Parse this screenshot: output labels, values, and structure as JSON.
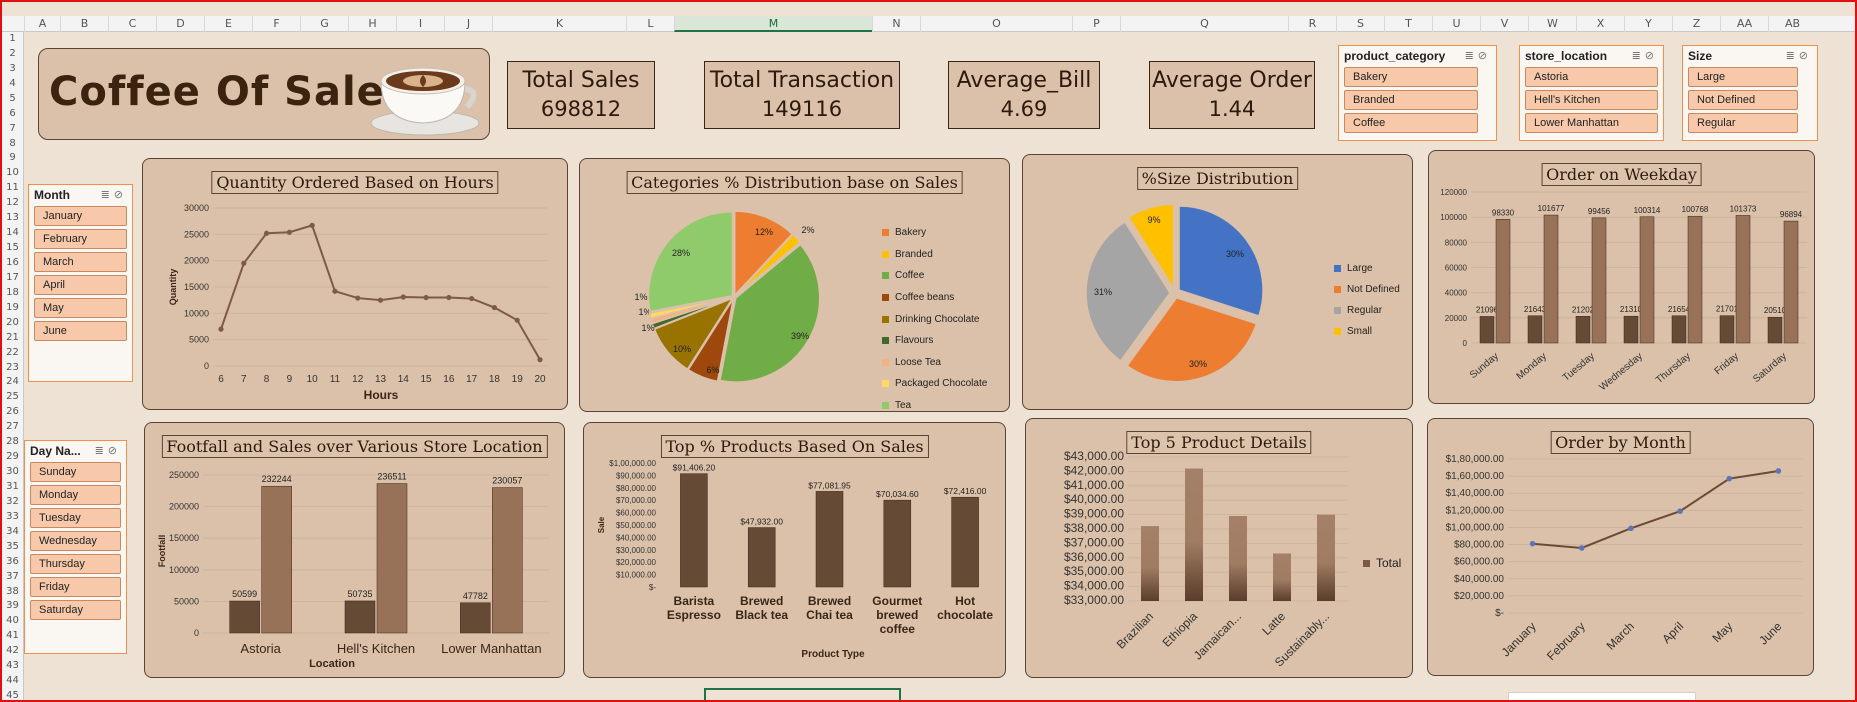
{
  "sheet": {
    "columns": [
      "A",
      "B",
      "C",
      "D",
      "E",
      "F",
      "G",
      "H",
      "I",
      "J",
      "K",
      "L",
      "M",
      "N",
      "O",
      "P",
      "Q",
      "R",
      "S",
      "T",
      "U",
      "V",
      "W",
      "X",
      "Y",
      "Z",
      "AA",
      "AB"
    ],
    "selected_column": "M",
    "rows": [
      "1",
      "2",
      "3",
      "4",
      "5",
      "6",
      "7",
      "8",
      "9",
      "10",
      "11",
      "12",
      "13",
      "14",
      "15",
      "16",
      "17",
      "18",
      "19",
      "20",
      "21",
      "22",
      "23",
      "24",
      "25",
      "26",
      "27",
      "28",
      "29",
      "30",
      "31",
      "32",
      "33",
      "34",
      "35",
      "36",
      "37",
      "38",
      "39",
      "40",
      "41",
      "42",
      "43",
      "44",
      "45"
    ]
  },
  "dashboard": {
    "title": "Coffee Of Sales"
  },
  "kpis": [
    {
      "label": "Total Sales",
      "value": "698812"
    },
    {
      "label": "Total Transaction",
      "value": "149116"
    },
    {
      "label": "Average_Bill",
      "value": "4.69"
    },
    {
      "label": "Average Order",
      "value": "1.44"
    }
  ],
  "slicers": {
    "product_category": {
      "title": "product_category",
      "items": [
        "Bakery",
        "Branded",
        "Coffee"
      ]
    },
    "store_location": {
      "title": "store_location",
      "items": [
        "Astoria",
        "Hell's Kitchen",
        "Lower Manhattan"
      ]
    },
    "size": {
      "title": "Size",
      "items": [
        "Large",
        "Not Defined",
        "Regular"
      ]
    },
    "month": {
      "title": "Month",
      "items": [
        "January",
        "February",
        "March",
        "April",
        "May",
        "June"
      ]
    },
    "day_name": {
      "title": "Day Na...",
      "items": [
        "Sunday",
        "Monday",
        "Tuesday",
        "Wednesday",
        "Thursday",
        "Friday",
        "Saturday"
      ]
    }
  },
  "colors": {
    "dark": "#654a36",
    "light": "#977258",
    "accent": "#f28f4a",
    "line": "#7d5b47"
  },
  "chart_data": [
    {
      "id": "hours",
      "type": "line",
      "title": "Quantity Ordered Based on Hours",
      "xlabel": "Hours",
      "ylabel": "Quantity",
      "ylim": [
        0,
        30000
      ],
      "yticks": [
        "0",
        "5000",
        "10000",
        "15000",
        "20000",
        "25000",
        "30000"
      ],
      "x": [
        "6",
        "7",
        "8",
        "9",
        "10",
        "11",
        "12",
        "13",
        "14",
        "15",
        "16",
        "17",
        "18",
        "19",
        "20"
      ],
      "values": [
        7000,
        19500,
        25200,
        25400,
        26700,
        14200,
        12900,
        12500,
        13100,
        13000,
        13000,
        12800,
        11100,
        8700,
        1200
      ]
    },
    {
      "id": "categories",
      "type": "pie",
      "title": "Categories % Distribution base on Sales",
      "labels": [
        "Bakery",
        "Branded",
        "Coffee",
        "Coffee beans",
        "Drinking Chocolate",
        "Flavours",
        "Loose Tea",
        "Packaged Chocolate",
        "Tea"
      ],
      "values": [
        12,
        2,
        39,
        6,
        10,
        1,
        1,
        1,
        28
      ],
      "value_labels": [
        "12%",
        "2%",
        "39%",
        "6%",
        "10%",
        "1%",
        "1%",
        "1%",
        "28%"
      ],
      "colors": [
        "#ed7d31",
        "#ffc000",
        "#70ad47",
        "#9e480e",
        "#997300",
        "#43682b",
        "#f4b183",
        "#ffd966",
        "#8fcb6a"
      ]
    },
    {
      "id": "size",
      "type": "pie",
      "title": "%Size Distribution",
      "labels": [
        "Large",
        "Not Defined",
        "Regular",
        "Small"
      ],
      "values": [
        30,
        30,
        31,
        9
      ],
      "value_labels": [
        "30%",
        "30%",
        "31%",
        "9%"
      ],
      "colors": [
        "#4472c4",
        "#ed7d31",
        "#a5a5a5",
        "#ffc000"
      ]
    },
    {
      "id": "weekday",
      "type": "bar",
      "title": "Order on Weekday",
      "categories": [
        "Sunday",
        "Monday",
        "Tuesday",
        "Wednesday",
        "Thursday",
        "Friday",
        "Saturday"
      ],
      "series": [
        {
          "values": [
            21096,
            21643,
            21202,
            21310,
            21654,
            21701,
            20510
          ]
        },
        {
          "values": [
            98330,
            101677,
            99456,
            100314,
            100768,
            101373,
            96894
          ]
        }
      ],
      "ylim": [
        0,
        120000
      ],
      "yticks": [
        "0",
        "20000",
        "40000",
        "60000",
        "80000",
        "100000",
        "120000"
      ]
    },
    {
      "id": "footfall",
      "type": "bar",
      "title": "Footfall and Sales over Various Store Location",
      "xlabel": "Location",
      "ylabel": "Footfall",
      "categories": [
        "Astoria",
        "Hell's Kitchen",
        "Lower Manhattan"
      ],
      "series": [
        {
          "values": [
            50599,
            50735,
            47782
          ]
        },
        {
          "values": [
            232244,
            236511,
            230057
          ]
        }
      ],
      "ylim": [
        0,
        250000
      ],
      "yticks": [
        "0",
        "50000",
        "100000",
        "150000",
        "200000",
        "250000"
      ]
    },
    {
      "id": "products",
      "type": "bar",
      "title": "Top % Products  Based  On Sales",
      "xlabel": "Product Type",
      "ylabel": "Sale",
      "categories": [
        [
          "Barista",
          "Espresso"
        ],
        [
          "Brewed",
          "Black tea"
        ],
        [
          "Brewed",
          "Chai tea"
        ],
        [
          "Gourmet",
          "brewed",
          "coffee"
        ],
        [
          "Hot",
          "chocolate"
        ]
      ],
      "values": [
        91406.2,
        47932.0,
        77081.95,
        70034.6,
        72416.0
      ],
      "value_labels": [
        "$91,406.20",
        "$47,932.00",
        "$77,081.95",
        "$70,034.60",
        "$72,416.00"
      ],
      "ylim": [
        0,
        100000
      ],
      "yticks": [
        "$-",
        "$10,000.00",
        "$20,000.00",
        "$30,000.00",
        "$40,000.00",
        "$50,000.00",
        "$60,000.00",
        "$70,000.00",
        "$80,000.00",
        "$90,000.00",
        "$1,00,000.00"
      ]
    },
    {
      "id": "top5",
      "type": "bar",
      "title": "Top 5 Product Details",
      "categories": [
        "Brazilian",
        "Ethiopia",
        "Jamaican...",
        "Latte",
        "Sustainably..."
      ],
      "values": [
        38200,
        42200,
        38900,
        36300,
        39000
      ],
      "ylim": [
        33000,
        43000
      ],
      "yticks": [
        "$33,000.00",
        "$34,000.00",
        "$35,000.00",
        "$36,000.00",
        "$37,000.00",
        "$38,000.00",
        "$39,000.00",
        "$40,000.00",
        "$41,000.00",
        "$42,000.00",
        "$43,000.00"
      ],
      "legend": "Total"
    },
    {
      "id": "month",
      "type": "line",
      "title": "Order  by Month",
      "x": [
        "January",
        "February",
        "March",
        "April",
        "May",
        "June"
      ],
      "values": [
        81000,
        76000,
        99000,
        119000,
        157000,
        166000
      ],
      "ylim": [
        0,
        180000
      ],
      "yticks": [
        "$-",
        "$20,000.00",
        "$40,000.00",
        "$60,000.00",
        "$80,000.00",
        "$1,00,000.00",
        "$1,20,000.00",
        "$1,40,000.00",
        "$1,60,000.00",
        "$1,80,000.00"
      ]
    }
  ]
}
